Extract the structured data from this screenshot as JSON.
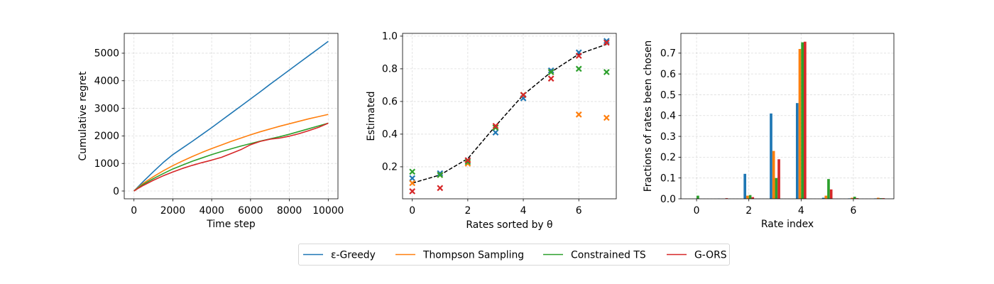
{
  "legend": {
    "entries": [
      {
        "label": "ε-Greedy",
        "color": "#1f77b4"
      },
      {
        "label": "Thompson Sampling",
        "color": "#ff7f0e"
      },
      {
        "label": "Constrained TS",
        "color": "#2ca02c"
      },
      {
        "label": "G-ORS",
        "color": "#d62728"
      }
    ]
  },
  "chart_data": [
    {
      "type": "line",
      "xlabel": "Time step",
      "ylabel": "Cumulative regret",
      "xlim": [
        -500,
        10500
      ],
      "ylim": [
        -283,
        5720
      ],
      "grid": true,
      "xticks": [
        "0",
        "2000",
        "4000",
        "6000",
        "8000",
        "10000"
      ],
      "yticks": [
        "0",
        "1000",
        "2000",
        "3000",
        "4000",
        "5000"
      ],
      "x": [
        0,
        250,
        500,
        1000,
        1500,
        2000,
        2500,
        3000,
        3500,
        4000,
        4500,
        5000,
        5500,
        6000,
        6500,
        7000,
        7500,
        8000,
        8500,
        9000,
        9500,
        10000
      ],
      "series": [
        {
          "values": [
            0,
            180,
            360,
            700,
            1030,
            1320,
            1560,
            1800,
            2050,
            2300,
            2560,
            2820,
            3080,
            3340,
            3600,
            3870,
            4130,
            4390,
            4650,
            4910,
            5170,
            5430
          ]
        },
        {
          "values": [
            0,
            150,
            290,
            520,
            730,
            920,
            1090,
            1250,
            1400,
            1540,
            1670,
            1800,
            1920,
            2040,
            2150,
            2250,
            2350,
            2440,
            2530,
            2620,
            2700,
            2780
          ]
        },
        {
          "values": [
            0,
            130,
            250,
            450,
            630,
            800,
            940,
            1080,
            1200,
            1320,
            1430,
            1530,
            1630,
            1720,
            1810,
            1890,
            1970,
            2060,
            2160,
            2260,
            2360,
            2460
          ]
        },
        {
          "values": [
            0,
            110,
            210,
            390,
            550,
            690,
            820,
            930,
            1030,
            1120,
            1220,
            1360,
            1500,
            1680,
            1800,
            1880,
            1920,
            1990,
            2080,
            2190,
            2310,
            2460
          ]
        }
      ]
    },
    {
      "type": "scatter",
      "xlabel": "Rates sorted by θ",
      "ylabel": "Estimated",
      "xlim": [
        -0.35,
        7.35
      ],
      "ylim": [
        0.004,
        1.017
      ],
      "grid": true,
      "xticks": [
        "0",
        "2",
        "4",
        "6"
      ],
      "yticks": [
        "0.2",
        "0.4",
        "0.6",
        "0.8",
        "1.0"
      ],
      "x": [
        0,
        1,
        2,
        3,
        4,
        5,
        6,
        7
      ],
      "reference": {
        "values": [
          0.1,
          0.15,
          0.25,
          0.45,
          0.64,
          0.78,
          0.89,
          0.95
        ],
        "color": "#000000"
      },
      "series": [
        {
          "values": [
            0.13,
            0.16,
            0.24,
            0.41,
            0.62,
            0.79,
            0.9,
            0.97
          ]
        },
        {
          "values": [
            0.1,
            0.15,
            0.22,
            0.44,
            0.64,
            0.78,
            0.52,
            0.5
          ]
        },
        {
          "values": [
            0.17,
            0.15,
            0.23,
            0.44,
            0.64,
            0.78,
            0.8,
            0.78
          ]
        },
        {
          "values": [
            0.05,
            0.07,
            0.24,
            0.45,
            0.64,
            0.74,
            0.88,
            0.96
          ]
        }
      ]
    },
    {
      "type": "bar",
      "xlabel": "Rate index",
      "ylabel": "Fractions of rates been chosen",
      "xlim": [
        -0.6,
        7.55
      ],
      "ylim": [
        0,
        0.795
      ],
      "grid": true,
      "xticks": [
        "0",
        "2",
        "4",
        "6"
      ],
      "yticks": [
        "0.0",
        "0.1",
        "0.2",
        "0.3",
        "0.4",
        "0.5",
        "0.6",
        "0.7"
      ],
      "categories": [
        0,
        1,
        2,
        3,
        4,
        5,
        6,
        7
      ],
      "series": [
        {
          "values": [
            0,
            0.001,
            0.12,
            0.41,
            0.46,
            0.005,
            0.002,
            0.002
          ]
        },
        {
          "values": [
            0,
            0,
            0.015,
            0.23,
            0.72,
            0.015,
            0.005,
            0.005
          ]
        },
        {
          "values": [
            0.015,
            0,
            0.018,
            0.1,
            0.752,
            0.095,
            0.01,
            0.003
          ]
        },
        {
          "values": [
            0,
            0.003,
            0.008,
            0.19,
            0.755,
            0.045,
            0.003,
            0.003
          ]
        }
      ]
    }
  ]
}
